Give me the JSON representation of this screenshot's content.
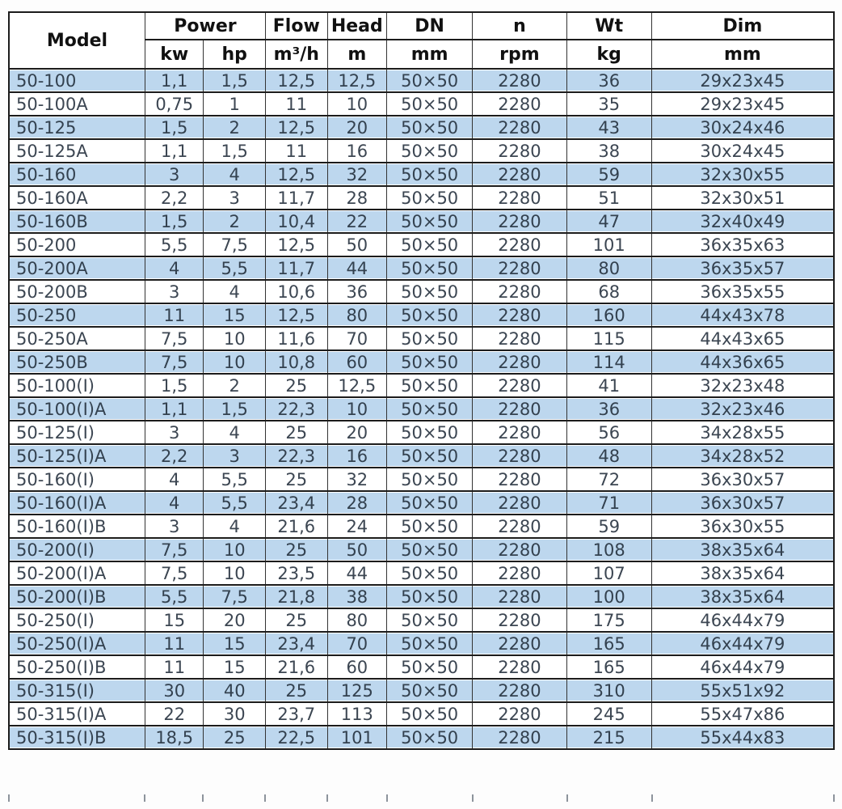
{
  "table": {
    "header": {
      "model": "Model",
      "power": "Power",
      "kw": "kw",
      "hp": "hp",
      "flow": "Flow",
      "flow_unit": "m³/h",
      "head": "Head",
      "head_unit": "m",
      "dn": "DN",
      "dn_unit": "mm",
      "n": "n",
      "n_unit": "rpm",
      "wt": "Wt",
      "wt_unit": "kg",
      "dim": "Dim",
      "dim_unit": "mm"
    },
    "rows": [
      [
        "50-100",
        "1,1",
        "1,5",
        "12,5",
        "12,5",
        "50×50",
        "2280",
        "36",
        "29x23x45"
      ],
      [
        "50-100A",
        "0,75",
        "1",
        "11",
        "10",
        "50×50",
        "2280",
        "35",
        "29x23x45"
      ],
      [
        "50-125",
        "1,5",
        "2",
        "12,5",
        "20",
        "50×50",
        "2280",
        "43",
        "30x24x46"
      ],
      [
        "50-125A",
        "1,1",
        "1,5",
        "11",
        "16",
        "50×50",
        "2280",
        "38",
        "30x24x45"
      ],
      [
        "50-160",
        "3",
        "4",
        "12,5",
        "32",
        "50×50",
        "2280",
        "59",
        "32x30x55"
      ],
      [
        "50-160A",
        "2,2",
        "3",
        "11,7",
        "28",
        "50×50",
        "2280",
        "51",
        "32x30x51"
      ],
      [
        "50-160B",
        "1,5",
        "2",
        "10,4",
        "22",
        "50×50",
        "2280",
        "47",
        "32x40x49"
      ],
      [
        "50-200",
        "5,5",
        "7,5",
        "12,5",
        "50",
        "50×50",
        "2280",
        "101",
        "36x35x63"
      ],
      [
        "50-200A",
        "4",
        "5,5",
        "11,7",
        "44",
        "50×50",
        "2280",
        "80",
        "36x35x57"
      ],
      [
        "50-200B",
        "3",
        "4",
        "10,6",
        "36",
        "50×50",
        "2280",
        "68",
        "36x35x55"
      ],
      [
        "50-250",
        "11",
        "15",
        "12,5",
        "80",
        "50×50",
        "2280",
        "160",
        "44x43x78"
      ],
      [
        "50-250A",
        "7,5",
        "10",
        "11,6",
        "70",
        "50×50",
        "2280",
        "115",
        "44x43x65"
      ],
      [
        "50-250B",
        "7,5",
        "10",
        "10,8",
        "60",
        "50×50",
        "2280",
        "114",
        "44x36x65"
      ],
      [
        "50-100(I)",
        "1,5",
        "2",
        "25",
        "12,5",
        "50×50",
        "2280",
        "41",
        "32x23x48"
      ],
      [
        "50-100(I)A",
        "1,1",
        "1,5",
        "22,3",
        "10",
        "50×50",
        "2280",
        "36",
        "32x23x46"
      ],
      [
        "50-125(I)",
        "3",
        "4",
        "25",
        "20",
        "50×50",
        "2280",
        "56",
        "34x28x55"
      ],
      [
        "50-125(I)A",
        "2,2",
        "3",
        "22,3",
        "16",
        "50×50",
        "2280",
        "48",
        "34x28x52"
      ],
      [
        "50-160(I)",
        "4",
        "5,5",
        "25",
        "32",
        "50×50",
        "2280",
        "72",
        "36x30x57"
      ],
      [
        "50-160(I)A",
        "4",
        "5,5",
        "23,4",
        "28",
        "50×50",
        "2280",
        "71",
        "36x30x57"
      ],
      [
        "50-160(I)B",
        "3",
        "4",
        "21,6",
        "24",
        "50×50",
        "2280",
        "59",
        "36x30x55"
      ],
      [
        "50-200(I)",
        "7,5",
        "10",
        "25",
        "50",
        "50×50",
        "2280",
        "108",
        "38x35x64"
      ],
      [
        "50-200(I)A",
        "7,5",
        "10",
        "23,5",
        "44",
        "50×50",
        "2280",
        "107",
        "38x35x64"
      ],
      [
        "50-200(I)B",
        "5,5",
        "7,5",
        "21,8",
        "38",
        "50×50",
        "2280",
        "100",
        "38x35x64"
      ],
      [
        "50-250(I)",
        "15",
        "20",
        "25",
        "80",
        "50×50",
        "2280",
        "175",
        "46x44x79"
      ],
      [
        "50-250(I)A",
        "11",
        "15",
        "23,4",
        "70",
        "50×50",
        "2280",
        "165",
        "46x44x79"
      ],
      [
        "50-250(I)B",
        "11",
        "15",
        "21,6",
        "60",
        "50×50",
        "2280",
        "165",
        "46x44x79"
      ],
      [
        "50-315(I)",
        "30",
        "40",
        "25",
        "125",
        "50×50",
        "2280",
        "310",
        "55x51x92"
      ],
      [
        "50-315(I)A",
        "22",
        "30",
        "23,7",
        "113",
        "50×50",
        "2280",
        "245",
        "55x47x86"
      ],
      [
        "50-315(I)B",
        "18,5",
        "25",
        "22,5",
        "101",
        "50×50",
        "2280",
        "215",
        "55x44x83"
      ]
    ]
  },
  "colors": {
    "row_alt_bg": "#BDD7EE",
    "row_bg": "#FFFFFF",
    "border": "#1C1C1C",
    "header_text": "#111111",
    "data_text": "#3C4652",
    "data_alt_text": "#33414F"
  }
}
